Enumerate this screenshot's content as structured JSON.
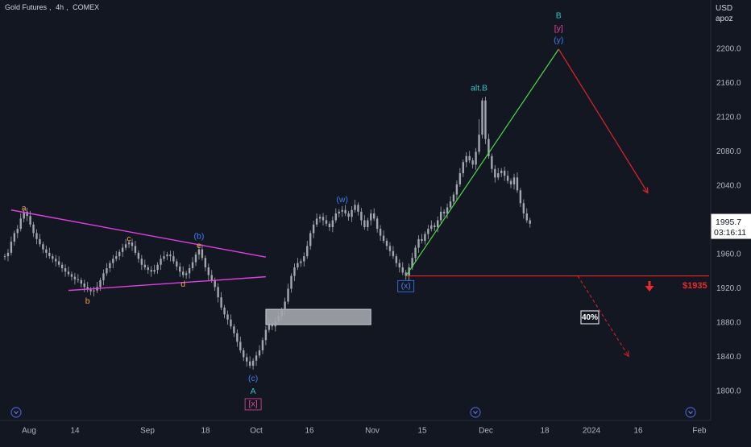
{
  "header": {
    "symbol": "Gold Futures",
    "interval": "4h",
    "exchange": "COMEX"
  },
  "price_scale": {
    "currency": "USD",
    "unit_label": "apoz"
  },
  "last_price": {
    "price": "1995.7",
    "countdown": "03:16:11"
  },
  "level_label": "$1935",
  "probability_badge": "40%",
  "colors": {
    "background": "#131722",
    "candles": "#a3a6af",
    "triangle": "#e040e0",
    "wave_orange": "#f0a050",
    "wave_blue": "#3d7df5",
    "wave_teal": "#35c2c9",
    "wave_magenta": "#e0479a",
    "projection_green": "#4cd94c",
    "projection_red": "#e02424",
    "support_red": "#e82a2a"
  },
  "chart_data": {
    "type": "line",
    "title": "",
    "xlabel": "",
    "ylabel": "",
    "ylim": [
      1770,
      2250
    ],
    "y_ticks": [
      1800,
      1840,
      1880,
      1920,
      1960,
      2000,
      2040,
      2080,
      2120,
      2160,
      2200
    ],
    "x_tick_labels": [
      "Aug",
      "14",
      "Sep",
      "18",
      "Oct",
      "16",
      "Nov",
      "15",
      "Dec",
      "18",
      "2024",
      "16",
      "Feb"
    ],
    "grid": false,
    "series": [
      {
        "values": [
          1958,
          1962,
          1975,
          1985,
          1990,
          2002,
          2010,
          2005,
          1995,
          1985,
          1978,
          1972,
          1966,
          1962,
          1958,
          1955,
          1952,
          1948,
          1944,
          1940,
          1937,
          1934,
          1931,
          1930,
          1926,
          1922,
          1919,
          1917,
          1918,
          1922,
          1930,
          1938,
          1944,
          1950,
          1955,
          1958,
          1963,
          1968,
          1972,
          1974,
          1970,
          1962,
          1955,
          1948,
          1945,
          1942,
          1940,
          1942,
          1948,
          1955,
          1958,
          1960,
          1958,
          1952,
          1946,
          1940,
          1936,
          1938,
          1944,
          1951,
          1960,
          1966,
          1956,
          1945,
          1936,
          1930,
          1922,
          1910,
          1898,
          1890,
          1884,
          1876,
          1868,
          1858,
          1848,
          1840,
          1835,
          1830,
          1836,
          1842,
          1848,
          1860,
          1872,
          1878,
          1876,
          1882,
          1888,
          1895,
          1905,
          1920,
          1935,
          1945,
          1950,
          1952,
          1958,
          1970,
          1985,
          1995,
          2002,
          2004,
          2000,
          1996,
          1992,
          2000,
          2008,
          2010,
          2012,
          2008,
          2004,
          2012,
          2018,
          2010,
          2000,
          1992,
          2000,
          2008,
          2002,
          1990,
          1982,
          1976,
          1970,
          1964,
          1958,
          1950,
          1945,
          1939,
          1935,
          1945,
          1956,
          1968,
          1978,
          1976,
          1984,
          1990,
          1994,
          1992,
          2000,
          2010,
          2008,
          2015,
          2022,
          2030,
          2042,
          2055,
          2068,
          2075,
          2070,
          2065,
          2080,
          2100,
          2140,
          2095,
          2075,
          2060,
          2050,
          2055,
          2058,
          2052,
          2046,
          2042,
          2050,
          2035,
          2020,
          2008,
          2000,
          1996
        ]
      }
    ],
    "annotations": [
      {
        "text": "a",
        "color": "orange",
        "x_index": 6,
        "price": 2014
      },
      {
        "text": "b",
        "color": "orange",
        "x_index": 26,
        "price": 1905
      },
      {
        "text": "c",
        "color": "orange",
        "x_index": 39,
        "price": 1978
      },
      {
        "text": "d",
        "color": "orange",
        "x_index": 56,
        "price": 1925
      },
      {
        "text": "e",
        "color": "orange",
        "x_index": 61,
        "price": 1970
      },
      {
        "text": "(b)",
        "color": "blue",
        "x_index": 61,
        "price": 1981
      },
      {
        "text": "(c)",
        "color": "blue",
        "x_index": 78,
        "price": 1815
      },
      {
        "text": "A",
        "color": "teal",
        "x_index": 78,
        "price": 1800
      },
      {
        "text": "[x]",
        "color": "magenta",
        "x_index": 78,
        "price": 1785
      },
      {
        "text": "(w)",
        "color": "blue",
        "x_index": 106,
        "price": 2024
      },
      {
        "text": "(x)",
        "color": "blue",
        "x_index": 126,
        "price": 1923
      },
      {
        "text": "alt.B",
        "color": "teal",
        "x_index": 149,
        "price": 2154
      },
      {
        "text": "B",
        "color": "teal",
        "x_index": 174,
        "price": 2239
      },
      {
        "text": "[y]",
        "color": "magenta",
        "x_index": 174,
        "price": 2224
      },
      {
        "text": "(y)",
        "color": "blue",
        "x_index": 174,
        "price": 2210
      }
    ],
    "trendlines": [
      {
        "name": "triangle-upper",
        "from": [
          2,
          2012
        ],
        "to": [
          82,
          1957
        ]
      },
      {
        "name": "triangle-lower",
        "from": [
          20,
          1918
        ],
        "to": [
          82,
          1934
        ]
      },
      {
        "name": "projection-up",
        "from": [
          126,
          1935
        ],
        "to": [
          174,
          2200
        ]
      },
      {
        "name": "projection-down",
        "from": [
          174,
          2200
        ],
        "to": [
          202,
          2032
        ]
      },
      {
        "name": "projection-alt-down",
        "from": [
          180,
          1935
        ],
        "to": [
          196,
          1841
        ]
      }
    ],
    "levels": [
      {
        "price": 1935,
        "from_index": 126
      }
    ],
    "zones": [
      {
        "from_index": 82,
        "to_index": 115,
        "price_low": 1878,
        "price_high": 1896
      }
    ]
  }
}
